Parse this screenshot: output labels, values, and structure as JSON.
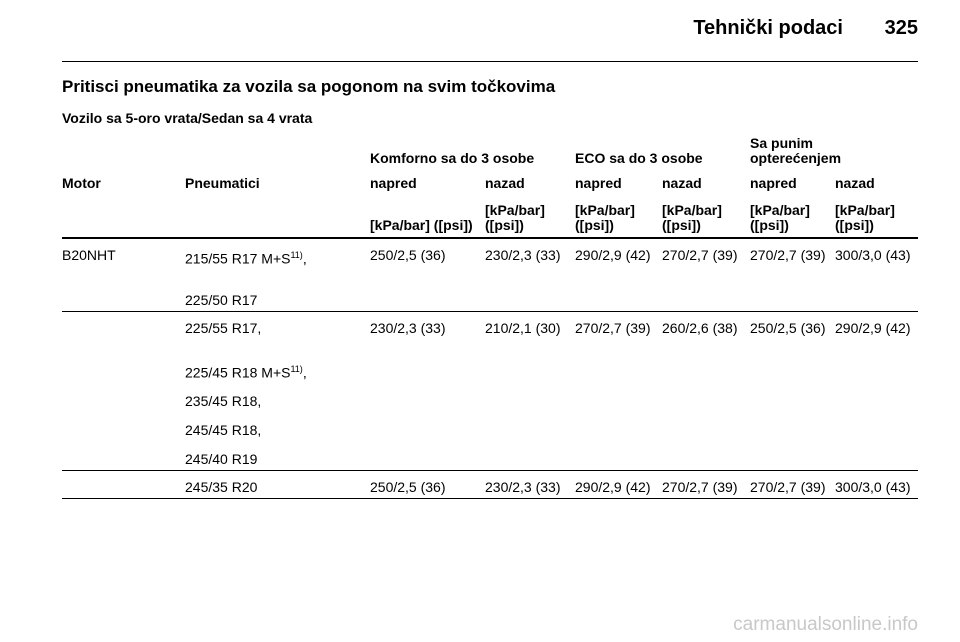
{
  "header": {
    "title": "Tehnički podaci",
    "page": "325"
  },
  "section_title": "Pritisci pneumatika za vozila sa pogonom na svim točkovima",
  "subtitle": "Vozilo sa 5-oro vrata/Sedan sa 4 vrata",
  "table": {
    "columns": [
      "Motor",
      "Pneumatici"
    ],
    "groups": [
      {
        "label": "Komforno sa do 3 osobe",
        "columns": [
          {
            "name": "napred",
            "unit": "[kPa/bar] ([psi])"
          },
          {
            "name": "nazad",
            "unit": "[kPa/bar] ([psi])"
          }
        ]
      },
      {
        "label": "ECO sa do 3 osobe",
        "columns": [
          {
            "name": "napred",
            "unit": "[kPa/bar] ([psi])"
          },
          {
            "name": "nazad",
            "unit": "[kPa/bar] ([psi])"
          }
        ]
      },
      {
        "label": "Sa punim opterećenjem",
        "columns": [
          {
            "name": "napred",
            "unit": "[kPa/bar] ([psi])"
          },
          {
            "name": "nazad",
            "unit": "[kPa/bar] ([psi])"
          }
        ]
      }
    ],
    "rows": [
      {
        "motor": "B20NHT",
        "tires": [
          {
            "text": "215/55 R17 M+S",
            "sup": "11)",
            "suffix": ","
          },
          {
            "text": "225/50 R17"
          }
        ],
        "values": [
          "250/2,5 (36)",
          "230/2,3 (33)",
          "290/2,9 (42)",
          "270/2,7 (39)",
          "270/2,7 (39)",
          "300/3,0 (43)"
        ]
      },
      {
        "tires": [
          {
            "text": "225/55 R17,"
          },
          {
            "text": "225/45 R18 M+S",
            "sup": "11)",
            "suffix": ","
          },
          {
            "text": "235/45 R18,"
          },
          {
            "text": "245/45 R18,"
          },
          {
            "text": "245/40 R19"
          }
        ],
        "values": [
          "230/2,3 (33)",
          "210/2,1 (30)",
          "270/2,7 (39)",
          "260/2,6 (38)",
          "250/2,5 (36)",
          "290/2,9 (42)"
        ]
      },
      {
        "tires": [
          {
            "text": "245/35 R20"
          }
        ],
        "values": [
          "250/2,5 (36)",
          "230/2,3 (33)",
          "290/2,9 (42)",
          "270/2,7 (39)",
          "270/2,7 (39)",
          "300/3,0 (43)"
        ]
      }
    ]
  },
  "watermark": "carmanualsonline.info"
}
